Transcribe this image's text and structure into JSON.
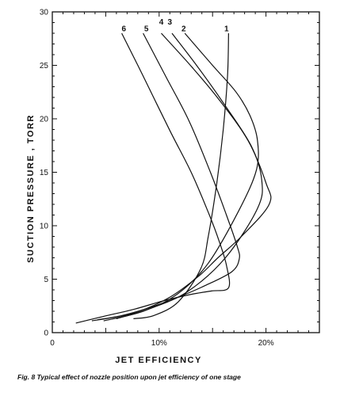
{
  "caption": "Fig. 8   Typical effect of nozzle position upon jet efficiency of one stage",
  "chart_data": {
    "type": "line",
    "title": "",
    "xlabel": "JET EFFICIENCY",
    "ylabel": "SUCTION PRESSURE , TORR",
    "xlim": [
      0,
      25
    ],
    "ylim": [
      0,
      30
    ],
    "x_ticks": [
      {
        "value": 0,
        "label": "0"
      },
      {
        "value": 10,
        "label": "10%"
      },
      {
        "value": 20,
        "label": "20%"
      }
    ],
    "y_ticks": [
      {
        "value": 0,
        "label": "0"
      },
      {
        "value": 5,
        "label": "5"
      },
      {
        "value": 10,
        "label": "10"
      },
      {
        "value": 15,
        "label": "15"
      },
      {
        "value": 20,
        "label": "20"
      },
      {
        "value": 25,
        "label": "25"
      },
      {
        "value": 30,
        "label": "30"
      }
    ],
    "grid": false,
    "series": [
      {
        "label": "1",
        "points": [
          [
            16.5,
            28
          ],
          [
            16.4,
            24
          ],
          [
            16.0,
            19
          ],
          [
            15.4,
            14
          ],
          [
            14.6,
            9
          ],
          [
            13.9,
            6
          ],
          [
            11.8,
            2.9
          ],
          [
            9.5,
            1.6
          ],
          [
            7.6,
            1.3
          ]
        ]
      },
      {
        "label": "2",
        "points": [
          [
            12.4,
            28
          ],
          [
            15.0,
            25
          ],
          [
            17.2,
            22.5
          ],
          [
            18.5,
            20.3
          ],
          [
            19.2,
            18
          ],
          [
            19.1,
            15.2
          ],
          [
            17.5,
            11.5
          ],
          [
            14.6,
            6.5
          ],
          [
            11.7,
            3.6
          ],
          [
            8.5,
            2
          ],
          [
            4.8,
            1.1
          ]
        ]
      },
      {
        "label": "3",
        "points": [
          [
            11.2,
            28
          ],
          [
            13.5,
            25
          ],
          [
            16.0,
            21.5
          ],
          [
            18.6,
            17.5
          ],
          [
            19.6,
            14.3
          ],
          [
            19.2,
            11.6
          ],
          [
            16.2,
            7
          ],
          [
            12.6,
            3.8
          ],
          [
            9.0,
            2.2
          ],
          [
            6.0,
            1.3
          ]
        ]
      },
      {
        "label": "4",
        "points": [
          [
            10.2,
            28
          ],
          [
            13.1,
            24.8
          ],
          [
            15.6,
            21.8
          ],
          [
            18.3,
            18
          ],
          [
            20.0,
            14
          ],
          [
            20.3,
            12
          ],
          [
            17.7,
            9
          ],
          [
            15.5,
            7
          ],
          [
            13.6,
            5.2
          ],
          [
            10.8,
            3.2
          ],
          [
            7.5,
            1.8
          ],
          [
            3.7,
            1.1
          ]
        ]
      },
      {
        "label": "5",
        "points": [
          [
            8.5,
            28
          ],
          [
            10.6,
            24
          ],
          [
            12.8,
            19.8
          ],
          [
            14.8,
            15
          ],
          [
            16.3,
            11
          ],
          [
            17.3,
            8.1
          ],
          [
            17.5,
            6.9
          ],
          [
            16.8,
            5.7
          ],
          [
            14.3,
            4.4
          ],
          [
            11.5,
            3.2
          ],
          [
            9.0,
            2.3
          ],
          [
            6.5,
            1.6
          ],
          [
            4.2,
            1.2
          ]
        ]
      },
      {
        "label": "6",
        "points": [
          [
            6.5,
            28
          ],
          [
            8.5,
            24
          ],
          [
            11.0,
            18.9
          ],
          [
            13.0,
            15
          ],
          [
            14.7,
            11
          ],
          [
            15.6,
            8.6
          ],
          [
            16.3,
            6.3
          ],
          [
            16.5,
            4.2
          ],
          [
            14.9,
            3.9
          ],
          [
            13.1,
            3.6
          ],
          [
            10.5,
            3
          ],
          [
            7.7,
            2.2
          ],
          [
            4.7,
            1.5
          ],
          [
            2.2,
            0.9
          ]
        ]
      }
    ],
    "curve_label_anchors": [
      {
        "label": "6",
        "x": 6.7,
        "y": 28.2
      },
      {
        "label": "5",
        "x": 8.8,
        "y": 28.2
      },
      {
        "label": "4",
        "x": 10.2,
        "y": 28.8
      },
      {
        "label": "3",
        "x": 11.0,
        "y": 28.8
      },
      {
        "label": "2",
        "x": 12.3,
        "y": 28.2
      },
      {
        "label": "1",
        "x": 16.3,
        "y": 28.2
      }
    ]
  }
}
